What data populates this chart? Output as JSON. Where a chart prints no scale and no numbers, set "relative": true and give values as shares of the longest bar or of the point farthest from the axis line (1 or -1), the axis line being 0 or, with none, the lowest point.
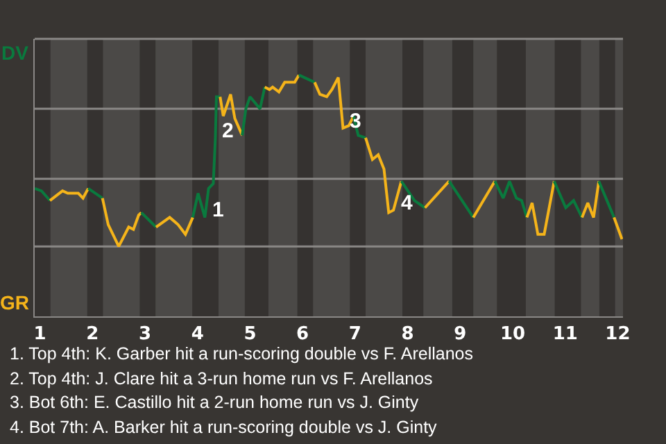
{
  "chart_data": {
    "type": "line",
    "relative": true,
    "xlim": [
      0.9,
      12.1
    ],
    "xticks": [
      1,
      2,
      3,
      4,
      5,
      6,
      7,
      8,
      9,
      10,
      11,
      12
    ],
    "series": [
      {
        "color": "#0a7a3e",
        "x": [
          0.9,
          1.03,
          1.19
        ],
        "values": [
          0.53,
          0.52,
          0.48
        ]
      },
      {
        "color": "#f5b41a",
        "x": [
          1.19,
          1.43,
          1.53,
          1.73,
          1.82,
          1.92
        ],
        "values": [
          0.48,
          0.52,
          0.51,
          0.51,
          0.49,
          0.53
        ]
      },
      {
        "color": "#0a7a3e",
        "x": [
          1.92,
          2.19
        ],
        "values": [
          0.53,
          0.49
        ]
      },
      {
        "color": "#f5b41a",
        "x": [
          2.19,
          2.3,
          2.5,
          2.69,
          2.78,
          2.88,
          2.93
        ],
        "values": [
          0.49,
          0.38,
          0.29,
          0.37,
          0.36,
          0.42,
          0.43
        ]
      },
      {
        "color": "#0a7a3e",
        "x": [
          2.93,
          3.21
        ],
        "values": [
          0.43,
          0.37
        ]
      },
      {
        "color": "#f5b41a",
        "x": [
          3.21,
          3.47,
          3.63,
          3.77,
          3.91
        ],
        "values": [
          0.37,
          0.41,
          0.38,
          0.34,
          0.41
        ]
      },
      {
        "color": "#0a7a3e",
        "x": [
          3.91,
          4.01,
          4.14,
          4.21,
          4.3,
          4.34,
          4.36,
          4.43
        ],
        "values": [
          0.41,
          0.51,
          0.41,
          0.53,
          0.55,
          0.74,
          0.91,
          0.91
        ]
      },
      {
        "color": "#f5b41a",
        "x": [
          4.43,
          4.49,
          4.63,
          4.71,
          4.85
        ],
        "values": [
          0.91,
          0.83,
          0.92,
          0.82,
          0.75
        ]
      },
      {
        "color": "#0a7a3e",
        "x": [
          4.85,
          4.92,
          5,
          5.19,
          5.28
        ],
        "values": [
          0.75,
          0.86,
          0.91,
          0.86,
          0.95
        ]
      },
      {
        "color": "#f5b41a",
        "x": [
          5.28,
          5.37,
          5.43,
          5.55,
          5.66,
          5.85,
          5.93
        ],
        "values": [
          0.95,
          0.94,
          0.95,
          0.93,
          0.97,
          0.97,
          1
        ]
      },
      {
        "color": "#0a7a3e",
        "x": [
          5.93,
          6.23
        ],
        "values": [
          1,
          0.97
        ]
      },
      {
        "color": "#f5b41a",
        "x": [
          6.23,
          6.33,
          6.46,
          6.56,
          6.68,
          6.77,
          6.88,
          6.97
        ],
        "values": [
          0.97,
          0.92,
          0.91,
          0.94,
          0.99,
          0.78,
          0.79,
          0.83
        ]
      },
      {
        "color": "#0a7a3e",
        "x": [
          6.97,
          7.06,
          7.2
        ],
        "values": [
          0.83,
          0.75,
          0.74
        ]
      },
      {
        "color": "#f5b41a",
        "x": [
          7.2,
          7.33,
          7.44,
          7.55,
          7.64,
          7.73,
          7.88
        ],
        "values": [
          0.74,
          0.65,
          0.67,
          0.61,
          0.43,
          0.44,
          0.56
        ]
      },
      {
        "color": "#0a7a3e",
        "x": [
          7.88,
          8.13,
          8.33
        ],
        "values": [
          0.56,
          0.48,
          0.45
        ]
      },
      {
        "color": "#f5b41a",
        "x": [
          8.33,
          8.79
        ],
        "values": [
          0.45,
          0.56
        ]
      },
      {
        "color": "#0a7a3e",
        "x": [
          8.79,
          9.25
        ],
        "values": [
          0.56,
          0.41
        ]
      },
      {
        "color": "#f5b41a",
        "x": [
          9.25,
          9.66
        ],
        "values": [
          0.41,
          0.56
        ]
      },
      {
        "color": "#0a7a3e",
        "x": [
          9.66,
          9.82,
          9.94,
          10.07,
          10.17,
          10.27
        ],
        "values": [
          0.56,
          0.49,
          0.56,
          0.49,
          0.48,
          0.41
        ]
      },
      {
        "color": "#f5b41a",
        "x": [
          10.27,
          10.37,
          10.48,
          10.6,
          10.79
        ],
        "values": [
          0.41,
          0.47,
          0.34,
          0.34,
          0.56
        ]
      },
      {
        "color": "#0a7a3e",
        "x": [
          10.79,
          11.01,
          11.16,
          11.32
        ],
        "values": [
          0.56,
          0.45,
          0.48,
          0.41
        ]
      },
      {
        "color": "#f5b41a",
        "x": [
          11.32,
          11.43,
          11.54,
          11.64
        ],
        "values": [
          0.41,
          0.47,
          0.41,
          0.56
        ]
      },
      {
        "color": "#0a7a3e",
        "x": [
          11.64,
          11.93
        ],
        "values": [
          0.56,
          0.41
        ]
      },
      {
        "color": "#f5b41a",
        "x": [
          11.93,
          12.08
        ],
        "values": [
          0.41,
          0.32
        ]
      }
    ],
    "ref_lines": [
      {
        "axis": "y",
        "value": 0.29,
        "color": "#8a8886"
      },
      {
        "axis": "y",
        "value": 0.57,
        "color": "#8a8886"
      },
      {
        "axis": "y",
        "value": 0.86,
        "color": "#8a8886"
      }
    ],
    "bands": [
      {
        "axis": "x",
        "from": 1.2,
        "to": 1.9,
        "color": "#4b4947"
      },
      {
        "axis": "x",
        "from": 2.2,
        "to": 2.9,
        "color": "#4b4947"
      },
      {
        "axis": "x",
        "from": 3.2,
        "to": 3.9,
        "color": "#4b4947"
      },
      {
        "axis": "x",
        "from": 4.4,
        "to": 4.9,
        "color": "#4b4947"
      },
      {
        "axis": "x",
        "from": 5.35,
        "to": 5.9,
        "color": "#4b4947"
      },
      {
        "axis": "x",
        "from": 6.2,
        "to": 6.9,
        "color": "#4b4947"
      },
      {
        "axis": "x",
        "from": 7.2,
        "to": 7.9,
        "color": "#4b4947"
      },
      {
        "axis": "x",
        "from": 8.3,
        "to": 8.85,
        "color": "#4b4947"
      },
      {
        "axis": "x",
        "from": 9.25,
        "to": 9.7,
        "color": "#4b4947"
      },
      {
        "axis": "x",
        "from": 10.25,
        "to": 10.8,
        "color": "#4b4947"
      },
      {
        "axis": "x",
        "from": 11.3,
        "to": 11.65,
        "color": "#4b4947"
      },
      {
        "axis": "x",
        "from": 11.95,
        "to": 12.1,
        "color": "#4b4947"
      }
    ],
    "annotations": [
      "DV",
      "GR",
      {
        "text": "1",
        "x": 4.14,
        "y": 0.41
      },
      {
        "text": "2",
        "x": 4.34,
        "y": 0.74
      },
      {
        "text": "3",
        "x": 6.77,
        "y": 0.78
      },
      {
        "text": "4",
        "x": 7.73,
        "y": 0.44
      },
      "1. Top 4th: K. Garber hit a run-scoring double vs F. Arellanos",
      "2. Top 4th: J. Clare hit a 3-run home run vs F. Arellanos",
      "3. Bot 6th: E. Castillo hit a 2-run home run vs J. Ginty",
      "4. Bot 7th: A. Barker hit a run-scoring double vs J. Ginty"
    ]
  }
}
